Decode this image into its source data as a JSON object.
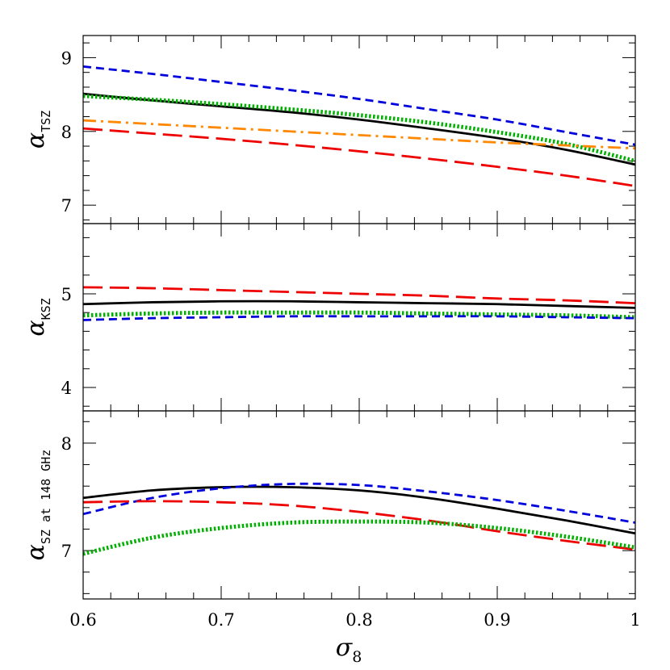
{
  "figure": {
    "xlabel_symbol": "σ",
    "xlabel_subscript": "8"
  },
  "chart_data": [
    {
      "type": "line",
      "ylabel_symbol": "α",
      "ylabel_subscript": "TSZ",
      "xlim": [
        0.6,
        1.0
      ],
      "ylim": [
        6.75,
        9.3
      ],
      "x_ticks": [
        0.6,
        0.7,
        0.8,
        0.9,
        1.0
      ],
      "y_ticks": [
        7,
        8,
        9
      ],
      "x": [
        0.6,
        0.65,
        0.7,
        0.75,
        0.8,
        0.85,
        0.9,
        0.95,
        1.0
      ],
      "series": [
        {
          "style": "dashed",
          "color": "#0000dd",
          "values": [
            8.88,
            8.78,
            8.67,
            8.56,
            8.44,
            8.3,
            8.16,
            7.99,
            7.82
          ]
        },
        {
          "style": "solid",
          "color": "#000000",
          "values": [
            8.51,
            8.42,
            8.34,
            8.26,
            8.16,
            8.04,
            7.91,
            7.75,
            7.55
          ]
        },
        {
          "style": "dotted",
          "color": "#00b000",
          "values": [
            8.48,
            8.43,
            8.37,
            8.3,
            8.22,
            8.12,
            7.99,
            7.83,
            7.6
          ]
        },
        {
          "style": "dashdot",
          "color": "#ff8800",
          "values": [
            8.15,
            8.1,
            8.05,
            8.0,
            7.95,
            7.9,
            7.85,
            7.81,
            7.77
          ]
        },
        {
          "style": "longdash",
          "color": "#ee0000",
          "values": [
            8.04,
            7.97,
            7.9,
            7.82,
            7.73,
            7.63,
            7.52,
            7.4,
            7.26
          ]
        }
      ]
    },
    {
      "type": "line",
      "ylabel_symbol": "α",
      "ylabel_subscript": "KSZ",
      "xlim": [
        0.6,
        1.0
      ],
      "ylim": [
        3.75,
        5.75
      ],
      "x_ticks": [
        0.6,
        0.7,
        0.8,
        0.9,
        1.0
      ],
      "y_ticks": [
        4,
        5
      ],
      "x": [
        0.6,
        0.65,
        0.7,
        0.75,
        0.8,
        0.85,
        0.9,
        0.95,
        1.0
      ],
      "series": [
        {
          "style": "longdash",
          "color": "#ee0000",
          "values": [
            5.07,
            5.06,
            5.04,
            5.02,
            5.0,
            4.98,
            4.95,
            4.93,
            4.9
          ]
        },
        {
          "style": "solid",
          "color": "#000000",
          "values": [
            4.89,
            4.91,
            4.92,
            4.92,
            4.91,
            4.9,
            4.89,
            4.87,
            4.85
          ]
        },
        {
          "style": "dotted",
          "color": "#00b000",
          "values": [
            4.77,
            4.79,
            4.8,
            4.8,
            4.8,
            4.79,
            4.78,
            4.77,
            4.75
          ]
        },
        {
          "style": "dashed",
          "color": "#0000dd",
          "values": [
            4.72,
            4.74,
            4.75,
            4.76,
            4.76,
            4.76,
            4.76,
            4.75,
            4.74
          ]
        }
      ]
    },
    {
      "type": "line",
      "ylabel_symbol": "α",
      "ylabel_subscript": "SZ at 148 GHz",
      "xlim": [
        0.6,
        1.0
      ],
      "ylim": [
        6.55,
        8.3
      ],
      "x_ticks": [
        0.6,
        0.7,
        0.8,
        0.9,
        1.0
      ],
      "y_ticks": [
        7,
        8
      ],
      "x": [
        0.6,
        0.65,
        0.7,
        0.75,
        0.8,
        0.85,
        0.9,
        0.95,
        1.0
      ],
      "series": [
        {
          "style": "solid",
          "color": "#000000",
          "values": [
            7.49,
            7.56,
            7.59,
            7.59,
            7.56,
            7.49,
            7.39,
            7.28,
            7.16
          ]
        },
        {
          "style": "dashed",
          "color": "#0000dd",
          "values": [
            7.34,
            7.49,
            7.58,
            7.62,
            7.61,
            7.55,
            7.47,
            7.37,
            7.26
          ]
        },
        {
          "style": "longdash",
          "color": "#ee0000",
          "values": [
            7.45,
            7.46,
            7.45,
            7.42,
            7.36,
            7.28,
            7.18,
            7.09,
            7.01
          ]
        },
        {
          "style": "dotted",
          "color": "#00b000",
          "values": [
            6.97,
            7.12,
            7.21,
            7.26,
            7.27,
            7.26,
            7.21,
            7.13,
            7.03
          ]
        }
      ]
    }
  ]
}
